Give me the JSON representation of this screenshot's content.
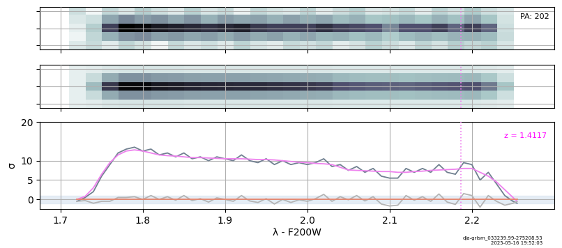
{
  "chart_data": [
    {
      "type": "heatmap",
      "annotations": [
        "PA: 202"
      ],
      "x": [
        1.72,
        1.74,
        1.76,
        1.78,
        1.8,
        1.82,
        1.84,
        1.86,
        1.88,
        1.9,
        1.92,
        1.94,
        1.96,
        1.98,
        2.0,
        2.02,
        2.04,
        2.06,
        2.08,
        2.1,
        2.12,
        2.14,
        2.16,
        2.18,
        2.2,
        2.22,
        2.24
      ],
      "cells": [
        [
          1,
          -0.5,
          1.5,
          0.5,
          2,
          1,
          0.3,
          1.8,
          0.6,
          1.2,
          -0.2,
          1.5,
          0.8,
          0.4,
          1.6,
          0.2,
          1.1,
          1.9,
          0.5,
          0.8,
          1.3,
          0.2,
          1.7,
          0.9,
          2.2,
          1,
          0.4
        ],
        [
          0.5,
          1,
          4,
          5.5,
          4.5,
          5,
          4,
          4.8,
          3.5,
          4.5,
          4,
          4.2,
          3.5,
          4.3,
          3.6,
          4,
          3,
          3.5,
          2.5,
          2.8,
          3.2,
          2.6,
          3.5,
          2.8,
          4,
          2.5,
          0.8
        ],
        [
          0,
          2,
          9,
          13,
          12.5,
          11.5,
          11,
          10.5,
          10,
          10.5,
          11,
          9.5,
          9,
          9,
          9,
          10,
          9,
          8.5,
          8,
          5.5,
          8,
          8,
          9,
          7,
          9,
          7,
          1
        ],
        [
          -0.3,
          1.5,
          3.5,
          4.8,
          5.2,
          4.2,
          4.6,
          4,
          4.4,
          3.8,
          4.5,
          3.8,
          4.2,
          3.5,
          4,
          3.3,
          3.5,
          2.8,
          3.2,
          2.2,
          3,
          3.4,
          2.9,
          3.4,
          3.5,
          3,
          1.2
        ],
        [
          0.4,
          1.2,
          0.2,
          1.6,
          0.8,
          -0.4,
          1.4,
          0.5,
          1,
          0.3,
          1.7,
          0.6,
          0.2,
          1.3,
          0.9,
          1.5,
          0.1,
          0.7,
          1.8,
          1.1,
          0.4,
          1.6,
          0.8,
          2,
          1.4,
          1.8,
          0.6
        ]
      ],
      "zlim": [
        -1,
        13
      ],
      "xlim": [
        1.675,
        2.3
      ],
      "xticks": [
        1.7,
        1.8,
        1.9,
        2.0,
        2.1,
        2.2
      ],
      "ylim": [
        -2.5,
        2.5
      ],
      "yticks": [
        -2,
        0,
        2
      ],
      "line_wavelength": 2.187,
      "grid": true,
      "tick_labels": false
    },
    {
      "type": "heatmap",
      "x": [
        1.72,
        1.74,
        1.76,
        1.78,
        1.8,
        1.82,
        1.84,
        1.86,
        1.88,
        1.9,
        1.92,
        1.94,
        1.96,
        1.98,
        2.0,
        2.02,
        2.04,
        2.06,
        2.08,
        2.1,
        2.12,
        2.14,
        2.16,
        2.18,
        2.2,
        2.22,
        2.24
      ],
      "cells": [
        [
          0,
          0.2,
          0.5,
          0.6,
          0.6,
          0.6,
          0.6,
          0.5,
          0.5,
          0.5,
          0.5,
          0.5,
          0.5,
          0.5,
          0.5,
          0.5,
          0.4,
          0.4,
          0.4,
          0.4,
          0.4,
          0.4,
          0.4,
          0.4,
          0.4,
          0.3,
          0.1
        ],
        [
          0,
          1.2,
          3.8,
          5,
          5,
          4.6,
          4.5,
          4.3,
          4.2,
          4.2,
          4.2,
          4.1,
          4,
          3.9,
          3.8,
          3.7,
          3.2,
          3,
          2.9,
          2.9,
          2.8,
          2.9,
          3,
          3.1,
          3.2,
          2.4,
          1
        ],
        [
          0,
          3,
          9.5,
          12.5,
          12.5,
          11.5,
          11.2,
          10.8,
          10.6,
          10.5,
          10.4,
          10.3,
          10,
          9.8,
          9.5,
          9.2,
          8,
          7.6,
          7.3,
          7.2,
          7,
          7.3,
          7.6,
          7.8,
          8,
          6,
          2.5
        ],
        [
          0,
          1.2,
          3.8,
          5,
          5,
          4.6,
          4.5,
          4.3,
          4.2,
          4.2,
          4.2,
          4.1,
          4,
          3.9,
          3.8,
          3.7,
          3.2,
          3,
          2.9,
          2.9,
          2.8,
          2.9,
          3,
          3.1,
          3.2,
          2.4,
          1
        ],
        [
          0,
          0.2,
          0.5,
          0.6,
          0.6,
          0.6,
          0.6,
          0.5,
          0.5,
          0.5,
          0.5,
          0.5,
          0.5,
          0.5,
          0.5,
          0.5,
          0.4,
          0.4,
          0.4,
          0.4,
          0.4,
          0.4,
          0.4,
          0.4,
          0.4,
          0.3,
          0.1
        ]
      ],
      "zlim": [
        -1,
        13
      ],
      "xlim": [
        1.675,
        2.3
      ],
      "xticks": [
        1.7,
        1.8,
        1.9,
        2.0,
        2.1,
        2.2
      ],
      "ylim": [
        -2.5,
        2.5
      ],
      "yticks": [
        -2,
        0,
        2
      ],
      "line_wavelength": 2.187,
      "grid": true,
      "tick_labels": false
    },
    {
      "type": "line",
      "x_label": "λ - F200W",
      "y_label": "σ",
      "annotations": [
        "z = 1.4117"
      ],
      "footer": [
        "dja-grism_033239.99-275208.53",
        "2025-05-16 19:52:03"
      ],
      "x": [
        1.72,
        1.73,
        1.74,
        1.75,
        1.76,
        1.77,
        1.78,
        1.79,
        1.8,
        1.81,
        1.82,
        1.83,
        1.84,
        1.85,
        1.86,
        1.87,
        1.88,
        1.89,
        1.9,
        1.91,
        1.92,
        1.93,
        1.94,
        1.95,
        1.96,
        1.97,
        1.98,
        1.99,
        2.0,
        2.01,
        2.02,
        2.03,
        2.04,
        2.05,
        2.06,
        2.07,
        2.08,
        2.09,
        2.1,
        2.11,
        2.12,
        2.13,
        2.14,
        2.15,
        2.16,
        2.17,
        2.18,
        2.19,
        2.2,
        2.21,
        2.22,
        2.23,
        2.24,
        2.25,
        2.255
      ],
      "series": [
        {
          "color": "#708090",
          "values": [
            -0.5,
            0.5,
            2,
            6,
            9,
            12,
            13,
            13.5,
            12.5,
            13,
            11.5,
            12,
            11,
            12,
            10.5,
            11,
            10,
            11,
            10.5,
            10,
            11.5,
            10,
            9.5,
            10.5,
            9,
            10,
            9,
            9.5,
            9,
            9.5,
            10.5,
            8.5,
            9,
            7.5,
            8.5,
            7,
            8,
            6,
            5.5,
            5.5,
            8,
            7,
            8,
            7,
            9,
            7,
            6.5,
            9.5,
            9,
            5,
            7,
            4,
            1,
            -0.5,
            -1
          ]
        },
        {
          "color": "#ee82ee",
          "values": [
            0,
            0.8,
            3,
            6.5,
            9.5,
            11.5,
            12.5,
            12.8,
            12.5,
            12,
            11.5,
            11.3,
            11.2,
            11,
            10.8,
            10.8,
            10.7,
            10.6,
            10.5,
            10.5,
            10.5,
            10.4,
            10.3,
            10.3,
            10.2,
            10,
            9.8,
            9.6,
            9.5,
            9.3,
            9.2,
            9,
            8.3,
            7.6,
            7.5,
            7.4,
            7.3,
            7.2,
            7.2,
            7,
            7,
            7.2,
            7.3,
            7.5,
            7.6,
            7.7,
            7.8,
            8,
            8,
            7,
            6,
            4.5,
            2.5,
            0.5,
            -0.5
          ]
        },
        {
          "color": "#b4b4b4",
          "values": [
            -0.5,
            -0.3,
            -1,
            -0.5,
            -0.5,
            0.5,
            0.5,
            0.7,
            0,
            1,
            0,
            0.7,
            -0.2,
            1,
            -0.3,
            0.2,
            -0.7,
            0.4,
            0,
            -0.5,
            1,
            -0.4,
            -0.8,
            0.2,
            -1.2,
            0,
            -0.8,
            -0.1,
            -0.5,
            0.2,
            1.3,
            -0.5,
            0.7,
            -0.1,
            1,
            -0.4,
            0.7,
            -1.2,
            -1.7,
            -1.5,
            1,
            -0.2,
            0.7,
            -0.5,
            1.4,
            -0.7,
            -1.3,
            1.5,
            1,
            -2,
            1,
            -0.5,
            -1.5,
            -1,
            -0.5
          ]
        },
        {
          "color": "#e9866e",
          "x": [
            1.72,
            2.255
          ],
          "values": [
            0,
            0
          ]
        }
      ],
      "noise_band": [
        -1,
        1
      ],
      "line_wavelength": 2.187,
      "xlim": [
        1.675,
        2.3
      ],
      "xticks": [
        1.7,
        1.8,
        1.9,
        2.0,
        2.1,
        2.2
      ],
      "ylim": [
        -2.5,
        20
      ],
      "yticks": [
        0,
        5,
        10,
        20
      ],
      "grid": true
    }
  ]
}
